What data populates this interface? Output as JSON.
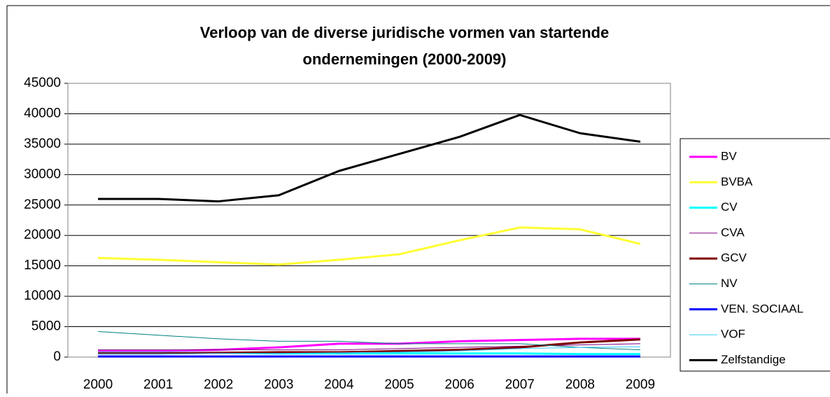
{
  "chart_data": {
    "type": "line",
    "title": [
      "Verloop van de diverse juridische vormen van startende",
      "ondernemingen (2000-2009)"
    ],
    "categories": [
      "2000",
      "2001",
      "2002",
      "2003",
      "2004",
      "2005",
      "2006",
      "2007",
      "2008",
      "2009"
    ],
    "ylim": [
      0,
      45000
    ],
    "yticks": [
      0,
      5000,
      10000,
      15000,
      20000,
      25000,
      30000,
      35000,
      40000,
      45000
    ],
    "grid": true,
    "legend": "right",
    "series": [
      {
        "name": "BV",
        "color": "#ff00ff",
        "line_width": 3,
        "values": [
          1000,
          1000,
          1200,
          1600,
          2200,
          2200,
          2600,
          2800,
          3000,
          3000
        ]
      },
      {
        "name": "BVBA",
        "color": "#ffff33",
        "line_width": 3,
        "values": [
          16300,
          16000,
          15600,
          15200,
          16000,
          16900,
          19200,
          21300,
          21000,
          18600
        ]
      },
      {
        "name": "CV",
        "color": "#00ffff",
        "line_width": 3,
        "values": [
          700,
          700,
          700,
          600,
          600,
          600,
          600,
          600,
          500,
          500
        ]
      },
      {
        "name": "CVA",
        "color": "#800080",
        "line_width": 1,
        "values": [
          1200,
          1200,
          1200,
          1200,
          1200,
          1400,
          1600,
          1800,
          2000,
          2200
        ]
      },
      {
        "name": "GCV",
        "color": "#800000",
        "line_width": 3,
        "values": [
          600,
          600,
          700,
          800,
          800,
          1000,
          1200,
          1600,
          2400,
          2900
        ]
      },
      {
        "name": "NV",
        "color": "#008080",
        "line_width": 1,
        "values": [
          4200,
          3600,
          3000,
          2600,
          2600,
          2200,
          2200,
          2200,
          1600,
          1200
        ]
      },
      {
        "name": "VEN. SOCIAAL",
        "color": "#0000ff",
        "line_width": 3,
        "values": [
          100,
          100,
          100,
          100,
          100,
          100,
          100,
          100,
          100,
          100
        ]
      },
      {
        "name": "VOF",
        "color": "#33ccff",
        "line_width": 1,
        "values": [
          500,
          500,
          600,
          600,
          700,
          800,
          1000,
          1400,
          1600,
          1700
        ]
      },
      {
        "name": "Zelfstandige",
        "color": "#000000",
        "line_width": 3,
        "values": [
          26000,
          26000,
          25600,
          26600,
          30600,
          33400,
          36200,
          39800,
          36800,
          35400
        ]
      }
    ]
  }
}
